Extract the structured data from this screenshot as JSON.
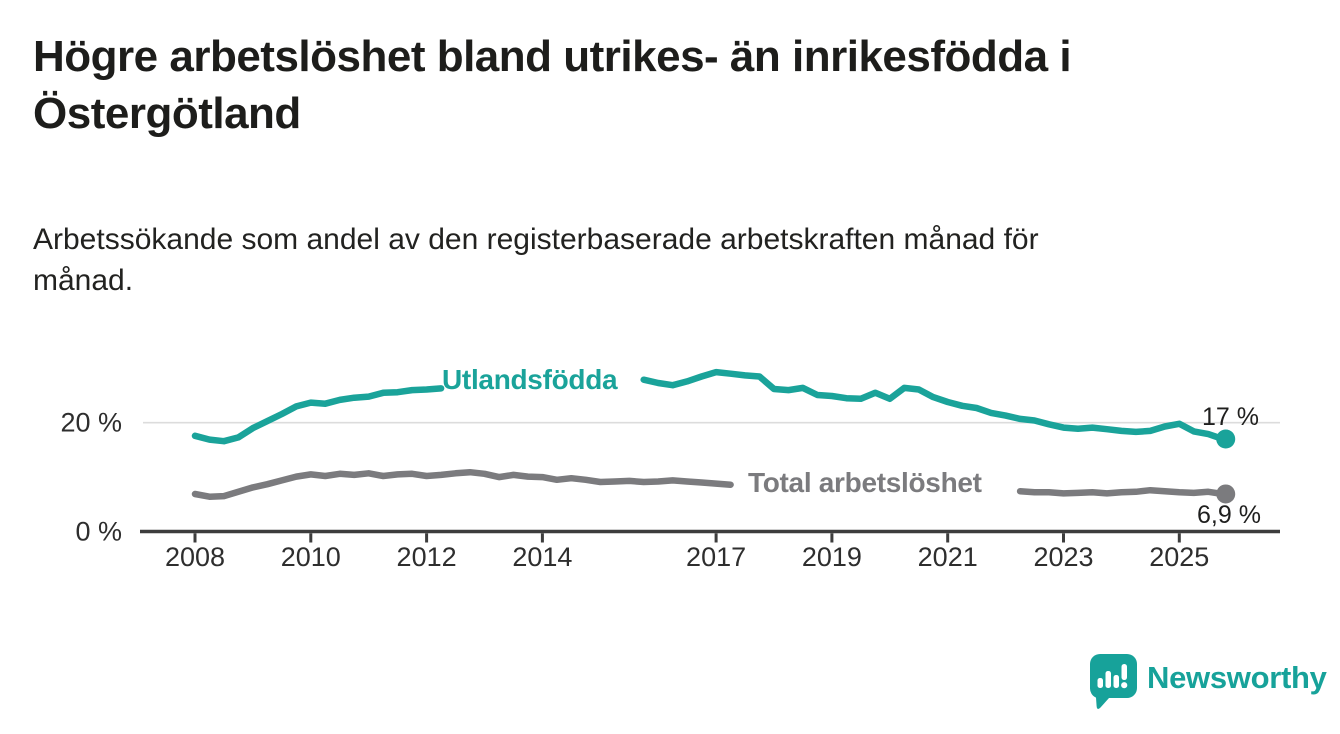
{
  "header": {
    "title": "Högre arbetslöshet bland utrikes- än inrikesfödda i\nÖstergötland",
    "subtitle": "Arbetssökande som andel av den registerbaserade arbetskraften månad för\nmånad."
  },
  "chart_data": {
    "type": "line",
    "title": "Högre arbetslöshet bland utrikes- än inrikesfödda i Östergötland",
    "subtitle": "Arbetssökande som andel av den registerbaserade arbetskraften månad för månad.",
    "x_unit": "year (monthly series, sampled quarterly)",
    "x": [
      2008,
      2008.25,
      2008.5,
      2008.75,
      2009,
      2009.25,
      2009.5,
      2009.75,
      2010,
      2010.25,
      2010.5,
      2010.75,
      2011,
      2011.25,
      2011.5,
      2011.75,
      2012,
      2012.25,
      2012.5,
      2012.75,
      2013,
      2013.25,
      2013.5,
      2013.75,
      2014,
      2014.25,
      2014.5,
      2014.75,
      2015,
      2015.25,
      2015.5,
      2015.75,
      2016,
      2016.25,
      2016.5,
      2016.75,
      2017,
      2017.25,
      2017.5,
      2017.75,
      2018,
      2018.25,
      2018.5,
      2018.75,
      2019,
      2019.25,
      2019.5,
      2019.75,
      2020,
      2020.25,
      2020.5,
      2020.75,
      2021,
      2021.25,
      2021.5,
      2021.75,
      2022,
      2022.25,
      2022.5,
      2022.75,
      2023,
      2023.25,
      2023.5,
      2023.75,
      2024,
      2024.25,
      2024.5,
      2024.75,
      2025,
      2025.25,
      2025.5,
      2025.75
    ],
    "series": [
      {
        "name": "Utlandsfödda",
        "color": "#1aa39a",
        "end_label": "17 %",
        "end_value": 17.0,
        "label_gap": {
          "from": 2012.25,
          "to": 2015.75
        },
        "values": [
          17.6,
          16.9,
          16.6,
          17.3,
          19.0,
          20.3,
          21.6,
          23.0,
          23.7,
          23.5,
          24.2,
          24.6,
          24.8,
          25.5,
          25.6,
          26.0,
          26.1,
          26.3,
          26.5,
          26.6,
          26.8,
          26.9,
          27.1,
          27.2,
          27.3,
          27.4,
          27.5,
          27.6,
          27.6,
          27.7,
          27.8,
          27.9,
          27.3,
          26.9,
          27.6,
          28.5,
          29.3,
          29.0,
          28.7,
          28.5,
          26.2,
          26.0,
          26.4,
          25.1,
          24.9,
          24.5,
          24.4,
          25.5,
          24.4,
          26.4,
          26.1,
          24.7,
          23.8,
          23.1,
          22.7,
          21.8,
          21.3,
          20.7,
          20.4,
          19.7,
          19.1,
          18.9,
          19.1,
          18.8,
          18.5,
          18.3,
          18.5,
          19.3,
          19.8,
          18.4,
          17.9,
          17.0
        ]
      },
      {
        "name": "Total arbetslöshet",
        "color": "#7b7b7e",
        "end_label": "6,9 %",
        "end_value": 6.9,
        "label_gap": {
          "from": 2017.25,
          "to": 2022.25
        },
        "values": [
          6.9,
          6.4,
          6.5,
          7.3,
          8.1,
          8.7,
          9.4,
          10.1,
          10.5,
          10.2,
          10.6,
          10.4,
          10.7,
          10.2,
          10.5,
          10.6,
          10.2,
          10.4,
          10.7,
          10.9,
          10.6,
          10.0,
          10.4,
          10.1,
          10.0,
          9.5,
          9.8,
          9.5,
          9.1,
          9.2,
          9.3,
          9.1,
          9.2,
          9.4,
          9.2,
          9.0,
          8.8,
          8.6,
          8.5,
          8.4,
          8.3,
          8.2,
          8.2,
          8.1,
          8.0,
          8.0,
          8.1,
          8.3,
          8.7,
          9.4,
          9.2,
          8.9,
          8.6,
          8.3,
          8.0,
          7.8,
          7.6,
          7.4,
          7.2,
          7.2,
          7.0,
          7.1,
          7.2,
          7.0,
          7.2,
          7.3,
          7.6,
          7.4,
          7.2,
          7.1,
          7.3,
          6.9
        ]
      }
    ],
    "x_axis": {
      "ticks": [
        "2008",
        "2010",
        "2012",
        "2014",
        "2017",
        "2019",
        "2021",
        "2023",
        "2025"
      ]
    },
    "y_axis": {
      "ticks": [
        {
          "value": 0,
          "label": "0 %"
        },
        {
          "value": 20,
          "label": "20 %"
        }
      ],
      "range": [
        0,
        33
      ]
    },
    "grid": "single light horizontal gridline at 20 %",
    "legend": "inline labels on the lines"
  },
  "footer": {
    "brand": "Newsworthy",
    "logo_icon": "newsworthy-speech-bubble-bar-chart-icon"
  },
  "colors": {
    "accent_teal": "#1aa39a",
    "series_gray": "#7b7b7e",
    "axis": "#3d3d3d",
    "gridline": "#dcdcdc",
    "text": "#1d1d1b"
  }
}
